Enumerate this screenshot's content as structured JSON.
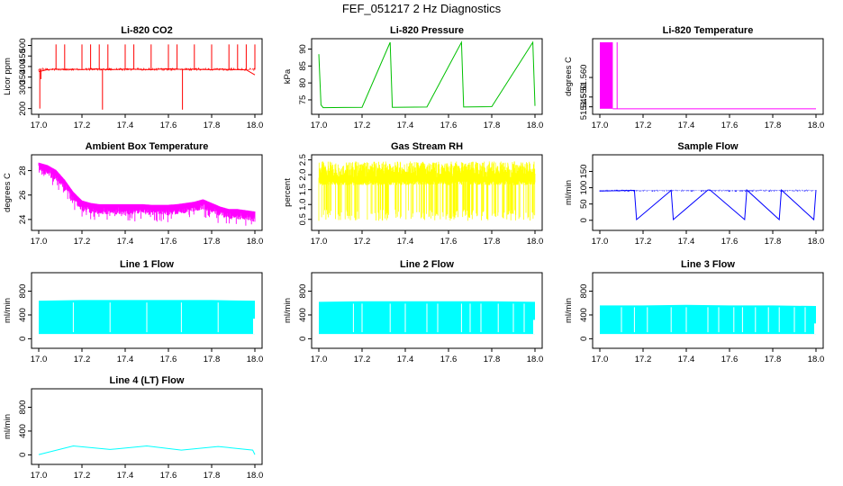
{
  "figure_title": "FEF_051217  2 Hz Diagnostics",
  "chart_data": [
    {
      "type": "line",
      "title": "Li-820 CO2",
      "ylabel": "Licor ppm",
      "xlim": [
        17.0,
        18.0
      ],
      "ylim": [
        190,
        515
      ],
      "yticks": [
        200,
        300,
        350,
        400,
        450,
        500
      ],
      "xticks": [
        17.0,
        17.2,
        17.4,
        17.6,
        17.8,
        18.0
      ],
      "grid": false,
      "series": [
        {
          "color": "#ff0000",
          "x": [
            17.0,
            17.04,
            17.08,
            17.12,
            17.16,
            17.2,
            17.24,
            17.28,
            17.32,
            17.36,
            17.4,
            17.44,
            17.48,
            17.52,
            17.56,
            17.6,
            17.64,
            17.68,
            17.72,
            17.76,
            17.8,
            17.84,
            17.88,
            17.92,
            17.96,
            18.0
          ],
          "y": [
            375,
            385,
            388,
            386,
            387,
            385,
            388,
            387,
            385,
            386,
            388,
            387,
            386,
            385,
            388,
            389,
            387,
            386,
            388,
            386,
            385,
            387,
            386,
            385,
            384,
            360
          ]
        }
      ]
    },
    {
      "type": "line",
      "title": "Li-820 Pressure",
      "ylabel": "kPa",
      "xlim": [
        17.0,
        18.0
      ],
      "ylim": [
        71.8,
        92.0
      ],
      "yticks": [
        75,
        80,
        85,
        90
      ],
      "xticks": [
        17.0,
        17.2,
        17.4,
        17.6,
        17.8,
        18.0
      ],
      "grid": false,
      "series": [
        {
          "color": "#00c000",
          "x": [
            17.0,
            17.01,
            17.02,
            17.2,
            17.33,
            17.34,
            17.5,
            17.66,
            17.67,
            17.8,
            17.99,
            18.0
          ],
          "y": [
            88.5,
            73.5,
            72.7,
            72.8,
            92,
            72.8,
            72.9,
            92,
            72.9,
            73.0,
            92,
            73.2
          ]
        }
      ]
    },
    {
      "type": "line",
      "title": "Li-820 Temperature",
      "ylabel": "degrees C",
      "xlim": [
        17.0,
        18.0
      ],
      "ylim": [
        51.543,
        51.578
      ],
      "yticks": [
        51.545,
        51.55,
        51.56
      ],
      "xticks": [
        17.0,
        17.2,
        17.4,
        17.6,
        17.8,
        18.0
      ],
      "grid": false,
      "series": [
        {
          "color": "#ff00ff",
          "x": [
            17.0,
            17.06,
            17.08,
            18.0
          ],
          "y": [
            51.578,
            51.578,
            51.544,
            51.544
          ]
        }
      ]
    },
    {
      "type": "line",
      "title": "Ambient Box Temperature",
      "ylabel": "degrees C",
      "xlim": [
        17.0,
        18.0
      ],
      "ylim": [
        23.4,
        29.0
      ],
      "yticks": [
        24,
        26,
        28
      ],
      "xticks": [
        17.0,
        17.2,
        17.4,
        17.6,
        17.8,
        18.0
      ],
      "grid": false,
      "series": [
        {
          "color": "#ff00ff",
          "x": [
            17.0,
            17.04,
            17.08,
            17.12,
            17.16,
            17.2,
            17.24,
            17.28,
            17.32,
            17.36,
            17.4,
            17.44,
            17.48,
            17.52,
            17.56,
            17.6,
            17.64,
            17.68,
            17.72,
            17.76,
            17.8,
            17.84,
            17.88,
            17.92,
            17.96,
            18.0
          ],
          "y": [
            28.4,
            28.2,
            27.8,
            27.0,
            26.0,
            25.3,
            25.1,
            25.0,
            25.0,
            25.0,
            25.0,
            25.0,
            25.0,
            24.95,
            24.95,
            24.95,
            25.0,
            25.1,
            25.2,
            25.4,
            25.1,
            24.8,
            24.6,
            24.6,
            24.5,
            24.4
          ]
        }
      ]
    },
    {
      "type": "line",
      "title": "Gas Stream RH",
      "ylabel": "percent",
      "xlim": [
        17.0,
        18.0
      ],
      "ylim": [
        0.25,
        2.55
      ],
      "yticks": [
        0.5,
        1.0,
        1.5,
        2.0,
        2.5
      ],
      "xticks": [
        17.0,
        17.2,
        17.4,
        17.6,
        17.8,
        18.0
      ],
      "grid": false,
      "series": [
        {
          "color": "#ffff00",
          "x": [
            17.0,
            17.1,
            17.2,
            17.3,
            17.4,
            17.5,
            17.6,
            17.7,
            17.8,
            17.9,
            18.0
          ],
          "y": [
            1.8,
            1.8,
            1.8,
            1.8,
            1.8,
            1.8,
            1.8,
            1.8,
            1.8,
            1.8,
            1.8
          ]
        }
      ]
    },
    {
      "type": "line",
      "title": "Sample Flow",
      "ylabel": "ml/min",
      "xlim": [
        17.0,
        18.0
      ],
      "ylim": [
        -20,
        190
      ],
      "yticks": [
        0,
        50,
        100,
        150
      ],
      "xticks": [
        17.0,
        17.2,
        17.4,
        17.6,
        17.8,
        18.0
      ],
      "grid": false,
      "series": [
        {
          "color": "#0000ff",
          "x": [
            17.0,
            17.16,
            17.17,
            17.33,
            17.34,
            17.5,
            17.51,
            17.67,
            17.68,
            17.83,
            17.84,
            17.99,
            18.0
          ],
          "y": [
            90,
            92,
            2,
            92,
            2,
            93,
            93,
            2,
            93,
            2,
            93,
            2,
            93
          ]
        }
      ]
    },
    {
      "type": "area",
      "title": "Line 1 Flow",
      "ylabel": "ml/min",
      "xlim": [
        17.0,
        18.0
      ],
      "ylim": [
        -100,
        1050
      ],
      "yticks": [
        0,
        400,
        800
      ],
      "xticks": [
        17.0,
        17.2,
        17.4,
        17.6,
        17.8,
        18.0
      ],
      "grid": false,
      "series": [
        {
          "color": "#00ffff",
          "x": [
            17.0,
            17.2,
            17.4,
            17.6,
            17.8,
            18.0
          ],
          "y_max": [
            640,
            650,
            650,
            650,
            650,
            640
          ],
          "y_min": [
            80,
            80,
            80,
            80,
            80,
            80
          ]
        }
      ]
    },
    {
      "type": "area",
      "title": "Line 2 Flow",
      "ylabel": "ml/min",
      "xlim": [
        17.0,
        18.0
      ],
      "ylim": [
        -100,
        1050
      ],
      "yticks": [
        0,
        400,
        800
      ],
      "xticks": [
        17.0,
        17.2,
        17.4,
        17.6,
        17.8,
        18.0
      ],
      "grid": false,
      "series": [
        {
          "color": "#00ffff",
          "x": [
            17.0,
            17.2,
            17.4,
            17.6,
            17.8,
            18.0
          ],
          "y_max": [
            620,
            630,
            630,
            630,
            630,
            620
          ],
          "y_min": [
            80,
            80,
            80,
            80,
            80,
            80
          ]
        }
      ]
    },
    {
      "type": "area",
      "title": "Line 3 Flow",
      "ylabel": "ml/min",
      "xlim": [
        17.0,
        18.0
      ],
      "ylim": [
        -100,
        1050
      ],
      "yticks": [
        0,
        400,
        800
      ],
      "xticks": [
        17.0,
        17.2,
        17.4,
        17.6,
        17.8,
        18.0
      ],
      "grid": false,
      "series": [
        {
          "color": "#00ffff",
          "x": [
            17.0,
            17.2,
            17.4,
            17.6,
            17.8,
            18.0
          ],
          "y_max": [
            560,
            560,
            570,
            560,
            560,
            550
          ],
          "y_min": [
            80,
            80,
            80,
            80,
            80,
            80
          ]
        }
      ]
    },
    {
      "type": "line",
      "title": "Line 4 (LT) Flow",
      "ylabel": "ml/min",
      "xlim": [
        17.0,
        18.0
      ],
      "ylim": [
        -100,
        1050
      ],
      "yticks": [
        0,
        400,
        800
      ],
      "xticks": [
        17.0,
        17.2,
        17.4,
        17.6,
        17.8,
        18.0
      ],
      "grid": false,
      "series": [
        {
          "color": "#00ffff",
          "x": [
            17.0,
            17.16,
            17.33,
            17.5,
            17.66,
            17.83,
            17.99,
            18.0
          ],
          "y": [
            5,
            150,
            90,
            150,
            80,
            140,
            80,
            5
          ]
        }
      ]
    }
  ]
}
